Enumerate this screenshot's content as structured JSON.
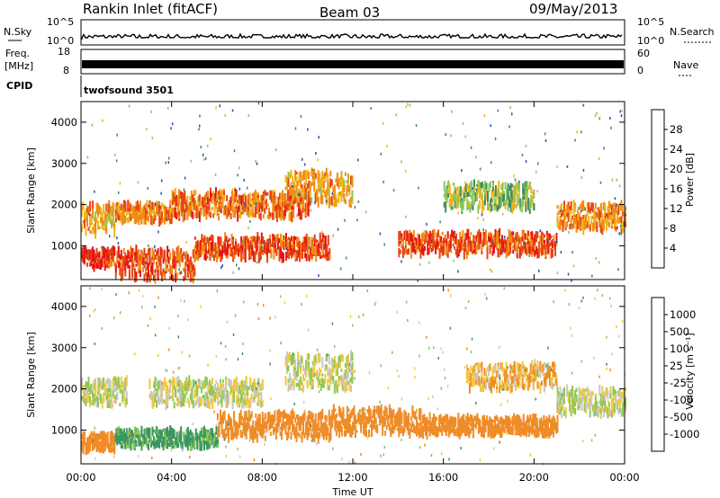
{
  "header": {
    "station": "Rankin Inlet (fitACF)",
    "beam": "Beam 03",
    "date": "09/May/2013"
  },
  "left_labels": {
    "nsky": "N.Sky",
    "nsky_top": "10^5",
    "nsky_bot": "10^0",
    "freq": "Freq.",
    "freq_unit": "[MHz]",
    "freq_top": "18",
    "freq_bot": "8",
    "cpid": "CPID"
  },
  "right_labels": {
    "nsearch": "N.Search",
    "nsearch_top": "10^5",
    "nsearch_bot": "10^0",
    "nave": "Nave",
    "nave_top": "60",
    "nave_bot": "0"
  },
  "cpid_text": "twofsound 3501",
  "x_axis": {
    "label": "Time UT",
    "ticks": [
      "00:00",
      "04:00",
      "08:00",
      "12:00",
      "16:00",
      "20:00",
      "00:00"
    ],
    "range_hours": [
      0,
      24
    ]
  },
  "panels": [
    {
      "ylabel": "Slant Range [km]",
      "yticks": [
        "1000",
        "2000",
        "3000",
        "4000"
      ]
    },
    {
      "ylabel": "Slant Range [km]",
      "yticks": [
        "1000",
        "2000",
        "3000",
        "4000"
      ]
    }
  ],
  "power_scale": {
    "label": "Power [dB]",
    "ticks": [
      "4",
      "8",
      "12",
      "16",
      "20",
      "24",
      "28"
    ],
    "colors": [
      "#1f1fe6",
      "#3050b4",
      "#3c8c64",
      "#8cc85a",
      "#f0b41e",
      "#f08c14",
      "#e64614",
      "#e61414"
    ]
  },
  "velocity_scale": {
    "label": "Velocity [m s⁻¹]",
    "ticks": [
      "1000",
      "500",
      "100",
      "25",
      "-25",
      "-100",
      "-500",
      "-1000"
    ],
    "colors": [
      "#283cb4",
      "#3c6e96",
      "#3c9664",
      "#8cc85a",
      "#c8c8c8",
      "#f0c846",
      "#f08c28",
      "#e65a14",
      "#e61414"
    ]
  },
  "chart_data": {
    "type": "heatmap",
    "title": "Rankin Inlet (fitACF)",
    "xlabel": "Time UT",
    "ylabel": "Slant Range [km]",
    "xlim_hours": [
      0,
      24
    ],
    "ylim_km": [
      180,
      4500
    ],
    "series": [
      {
        "name": "Power [dB]",
        "bands": [
          {
            "t": [
              0,
              1.5
            ],
            "r_km": [
              1300,
              2000
            ],
            "value": 20
          },
          {
            "t": [
              0,
              1.5
            ],
            "r_km": [
              500,
              900
            ],
            "value": 28
          },
          {
            "t": [
              1.5,
              4
            ],
            "r_km": [
              1600,
              2000
            ],
            "value": 22
          },
          {
            "t": [
              1.5,
              5
            ],
            "r_km": [
              200,
              900
            ],
            "value": 26
          },
          {
            "t": [
              4,
              10
            ],
            "r_km": [
              1700,
              2300
            ],
            "value": 24
          },
          {
            "t": [
              5,
              11
            ],
            "r_km": [
              700,
              1200
            ],
            "value": 26
          },
          {
            "t": [
              9,
              12
            ],
            "r_km": [
              2000,
              2800
            ],
            "value": 20
          },
          {
            "t": [
              14,
              21
            ],
            "r_km": [
              800,
              1300
            ],
            "value": 26
          },
          {
            "t": [
              16,
              20
            ],
            "r_km": [
              1900,
              2500
            ],
            "value": 14
          },
          {
            "t": [
              21,
              24
            ],
            "r_km": [
              1400,
              2000
            ],
            "value": 22
          }
        ]
      },
      {
        "name": "Velocity [m s⁻¹]",
        "bands": [
          {
            "t": [
              0,
              2
            ],
            "r_km": [
              1600,
              2200
            ],
            "value": 0
          },
          {
            "t": [
              0,
              1.5
            ],
            "r_km": [
              500,
              900
            ],
            "value": -200
          },
          {
            "t": [
              1.5,
              6
            ],
            "r_km": [
              600,
              1000
            ],
            "value": 150
          },
          {
            "t": [
              3,
              8
            ],
            "r_km": [
              1600,
              2200
            ],
            "value": 0
          },
          {
            "t": [
              6,
              11
            ],
            "r_km": [
              800,
              1400
            ],
            "value": -200
          },
          {
            "t": [
              9,
              12
            ],
            "r_km": [
              2000,
              2800
            ],
            "value": 0
          },
          {
            "t": [
              11,
              15
            ],
            "r_km": [
              900,
              1500
            ],
            "value": -300
          },
          {
            "t": [
              15,
              21
            ],
            "r_km": [
              900,
              1300
            ],
            "value": -400
          },
          {
            "t": [
              17,
              21
            ],
            "r_km": [
              2000,
              2600
            ],
            "value": -100
          },
          {
            "t": [
              21,
              24
            ],
            "r_km": [
              1400,
              2000
            ],
            "value": 0
          }
        ]
      }
    ]
  }
}
